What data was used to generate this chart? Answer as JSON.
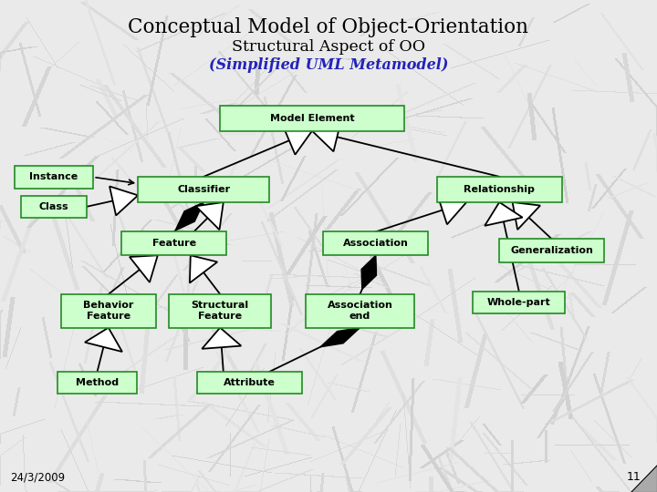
{
  "title1": "Conceptual Model of Object-Orientation",
  "title2": "Structural Aspect of OO",
  "title3": "(Simplified UML Metamodel)",
  "date": "24/3/2009",
  "page": "11",
  "bg_color_light": "#e8e8e8",
  "bg_color_marble": "#d8d8d8",
  "box_fill": "#ccffcc",
  "box_edge": "#228B22",
  "boxes": {
    "ModelElement": [
      0.475,
      0.76,
      0.28,
      0.052
    ],
    "Classifier": [
      0.31,
      0.615,
      0.2,
      0.052
    ],
    "Instance": [
      0.082,
      0.64,
      0.12,
      0.045
    ],
    "Class": [
      0.082,
      0.58,
      0.1,
      0.045
    ],
    "Feature": [
      0.265,
      0.505,
      0.16,
      0.048
    ],
    "BehaviorFeature": [
      0.165,
      0.368,
      0.145,
      0.068
    ],
    "StructuralFeature": [
      0.335,
      0.368,
      0.155,
      0.068
    ],
    "Method": [
      0.148,
      0.222,
      0.12,
      0.045
    ],
    "Attribute": [
      0.38,
      0.222,
      0.16,
      0.045
    ],
    "Association": [
      0.572,
      0.505,
      0.16,
      0.048
    ],
    "AssociationEnd": [
      0.548,
      0.368,
      0.165,
      0.068
    ],
    "Relationship": [
      0.76,
      0.615,
      0.19,
      0.052
    ],
    "Generalization": [
      0.84,
      0.49,
      0.16,
      0.048
    ],
    "WholePart": [
      0.79,
      0.385,
      0.14,
      0.045
    ]
  },
  "box_labels": {
    "ModelElement": "Model Element",
    "Classifier": "Classifier",
    "Instance": "Instance",
    "Class": "Class",
    "Feature": "Feature",
    "BehaviorFeature": "Behavior\nFeature",
    "StructuralFeature": "Structural\nFeature",
    "Method": "Method",
    "Attribute": "Attribute",
    "Association": "Association",
    "AssociationEnd": "Association\nend",
    "Relationship": "Relationship",
    "Generalization": "Generalization",
    "WholePart": "Whole-part"
  }
}
